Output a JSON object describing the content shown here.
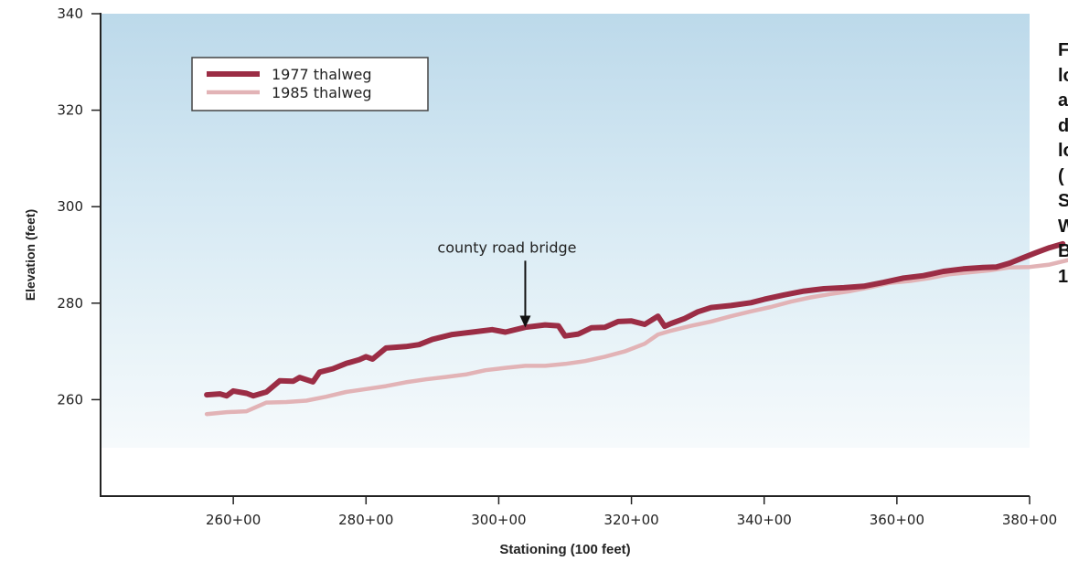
{
  "chart_data": {
    "type": "line",
    "title": "",
    "xlabel": "Stationing (100 feet)",
    "ylabel": "Elevation (feet)",
    "xlim": [
      24000,
      38000
    ],
    "ylim": [
      240,
      340
    ],
    "x_ticks": [
      {
        "value": 26000,
        "label": "260+00"
      },
      {
        "value": 28000,
        "label": "280+00"
      },
      {
        "value": 30000,
        "label": "300+00"
      },
      {
        "value": 32000,
        "label": "320+00"
      },
      {
        "value": 34000,
        "label": "340+00"
      },
      {
        "value": 36000,
        "label": "360+00"
      },
      {
        "value": 38000,
        "label": "380+00"
      }
    ],
    "y_ticks": [
      {
        "value": 260,
        "label": "260"
      },
      {
        "value": 280,
        "label": "280"
      },
      {
        "value": 300,
        "label": "300"
      },
      {
        "value": 320,
        "label": "320"
      },
      {
        "value": 340,
        "label": "340"
      }
    ],
    "legend_position": "top-left",
    "grid": false,
    "series": [
      {
        "name": "1977 thalweg",
        "color": "#9b2d45",
        "points": [
          [
            25600,
            261
          ],
          [
            25800,
            261.2
          ],
          [
            25900,
            260.8
          ],
          [
            26000,
            261.8
          ],
          [
            26200,
            261.3
          ],
          [
            26300,
            260.8
          ],
          [
            26500,
            261.6
          ],
          [
            26700,
            263.9
          ],
          [
            26900,
            263.8
          ],
          [
            27000,
            264.6
          ],
          [
            27200,
            263.7
          ],
          [
            27300,
            265.7
          ],
          [
            27500,
            266.4
          ],
          [
            27700,
            267.5
          ],
          [
            27900,
            268.3
          ],
          [
            28000,
            268.9
          ],
          [
            28100,
            268.4
          ],
          [
            28300,
            270.7
          ],
          [
            28600,
            271.0
          ],
          [
            28800,
            271.4
          ],
          [
            29000,
            272.5
          ],
          [
            29300,
            273.5
          ],
          [
            29600,
            274.0
          ],
          [
            29900,
            274.5
          ],
          [
            30100,
            274.0
          ],
          [
            30400,
            275.0
          ],
          [
            30700,
            275.5
          ],
          [
            30900,
            275.3
          ],
          [
            31000,
            273.2
          ],
          [
            31200,
            273.6
          ],
          [
            31400,
            274.9
          ],
          [
            31600,
            275.0
          ],
          [
            31800,
            276.2
          ],
          [
            32000,
            276.3
          ],
          [
            32200,
            275.6
          ],
          [
            32400,
            277.3
          ],
          [
            32500,
            275.2
          ],
          [
            32600,
            275.8
          ],
          [
            32800,
            276.8
          ],
          [
            33000,
            278.2
          ],
          [
            33200,
            279.1
          ],
          [
            33500,
            279.5
          ],
          [
            33800,
            280.1
          ],
          [
            34000,
            280.8
          ],
          [
            34300,
            281.7
          ],
          [
            34600,
            282.5
          ],
          [
            34900,
            283.0
          ],
          [
            35200,
            283.2
          ],
          [
            35500,
            283.5
          ],
          [
            35800,
            284.3
          ],
          [
            36100,
            285.2
          ],
          [
            36400,
            285.7
          ],
          [
            36700,
            286.6
          ],
          [
            37000,
            287.1
          ],
          [
            37300,
            287.4
          ],
          [
            37500,
            287.5
          ],
          [
            37700,
            288.3
          ],
          [
            37900,
            289.4
          ],
          [
            38100,
            290.5
          ],
          [
            38300,
            291.5
          ],
          [
            38500,
            292.3
          ]
        ]
      },
      {
        "name": "1985 thalweg",
        "color": "#e2b3b6",
        "points": [
          [
            25600,
            257
          ],
          [
            25900,
            257.4
          ],
          [
            26200,
            257.6
          ],
          [
            26500,
            259.4
          ],
          [
            26800,
            259.5
          ],
          [
            27100,
            259.8
          ],
          [
            27400,
            260.6
          ],
          [
            27700,
            261.6
          ],
          [
            28000,
            262.2
          ],
          [
            28300,
            262.8
          ],
          [
            28600,
            263.6
          ],
          [
            28900,
            264.2
          ],
          [
            29200,
            264.7
          ],
          [
            29500,
            265.2
          ],
          [
            29800,
            266.1
          ],
          [
            30100,
            266.6
          ],
          [
            30400,
            267.0
          ],
          [
            30700,
            267.0
          ],
          [
            31000,
            267.4
          ],
          [
            31300,
            268.0
          ],
          [
            31600,
            268.9
          ],
          [
            31900,
            270.0
          ],
          [
            32200,
            271.6
          ],
          [
            32400,
            273.5
          ],
          [
            32600,
            274.3
          ],
          [
            32900,
            275.3
          ],
          [
            33200,
            276.2
          ],
          [
            33500,
            277.3
          ],
          [
            33800,
            278.3
          ],
          [
            34100,
            279.2
          ],
          [
            34400,
            280.3
          ],
          [
            34700,
            281.2
          ],
          [
            35000,
            281.9
          ],
          [
            35300,
            282.5
          ],
          [
            35600,
            283.3
          ],
          [
            35900,
            284.2
          ],
          [
            36200,
            284.6
          ],
          [
            36500,
            285.2
          ],
          [
            36800,
            286.0
          ],
          [
            37100,
            286.4
          ],
          [
            37400,
            286.8
          ],
          [
            37700,
            287.4
          ],
          [
            38000,
            287.5
          ],
          [
            38300,
            288.0
          ],
          [
            38600,
            289.0
          ],
          [
            38900,
            289.5
          ],
          [
            39000,
            289.8
          ]
        ]
      }
    ],
    "annotations": [
      {
        "text": "county road bridge",
        "arrow_to": [
          30400,
          274.0
        ],
        "label_at": [
          30400,
          290.5
        ]
      }
    ]
  },
  "caption": {
    "lines": [
      "F",
      "lo",
      "a",
      "d",
      "lo",
      "(",
      "S",
      "W",
      "B",
      "1"
    ]
  }
}
